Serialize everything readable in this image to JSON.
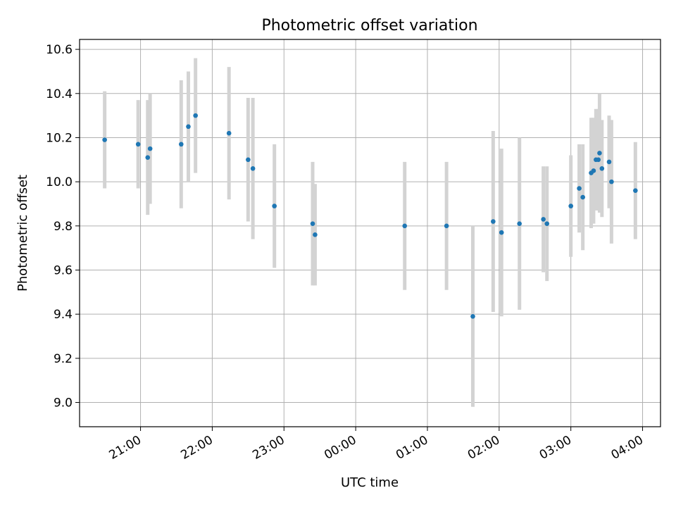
{
  "chart_data": {
    "type": "scatter",
    "title": "Photometric offset variation",
    "xlabel": "UTC time",
    "ylabel": "Photometric offset",
    "xlim": [
      "20:09",
      "04:15"
    ],
    "ylim": [
      8.89,
      10.645
    ],
    "grid": true,
    "x_ticks": [
      "21:00",
      "22:00",
      "23:00",
      "00:00",
      "01:00",
      "02:00",
      "03:00",
      "04:00"
    ],
    "y_ticks": [
      "9.0",
      "9.2",
      "9.4",
      "9.6",
      "9.8",
      "10.0",
      "10.2",
      "10.4",
      "10.6"
    ],
    "point_color": "#1f77b4",
    "errorbar_color": "#d3d3d3",
    "points": [
      {
        "time": "20:30",
        "y": 10.19,
        "err": 0.22
      },
      {
        "time": "20:58",
        "y": 10.17,
        "err": 0.2
      },
      {
        "time": "21:06",
        "y": 10.11,
        "err": 0.26
      },
      {
        "time": "21:08",
        "y": 10.15,
        "err": 0.25
      },
      {
        "time": "21:34",
        "y": 10.17,
        "err": 0.29
      },
      {
        "time": "21:40",
        "y": 10.25,
        "err": 0.25
      },
      {
        "time": "21:46",
        "y": 10.3,
        "err": 0.26
      },
      {
        "time": "22:14",
        "y": 10.22,
        "err": 0.3
      },
      {
        "time": "22:30",
        "y": 10.1,
        "err": 0.28
      },
      {
        "time": "22:34",
        "y": 10.06,
        "err": 0.32
      },
      {
        "time": "22:52",
        "y": 9.89,
        "err": 0.28
      },
      {
        "time": "23:24",
        "y": 9.81,
        "err": 0.28
      },
      {
        "time": "23:26",
        "y": 9.76,
        "err": 0.23
      },
      {
        "time": "00:41",
        "y": 9.8,
        "err": 0.29
      },
      {
        "time": "01:16",
        "y": 9.8,
        "err": 0.29
      },
      {
        "time": "01:38",
        "y": 9.39,
        "err": 0.41
      },
      {
        "time": "01:55",
        "y": 9.82,
        "err": 0.41
      },
      {
        "time": "02:02",
        "y": 9.77,
        "err": 0.38
      },
      {
        "time": "02:17",
        "y": 9.81,
        "err": 0.39
      },
      {
        "time": "02:37",
        "y": 9.83,
        "err": 0.24
      },
      {
        "time": "02:40",
        "y": 9.81,
        "err": 0.26
      },
      {
        "time": "03:00",
        "y": 9.89,
        "err": 0.23
      },
      {
        "time": "03:07",
        "y": 9.97,
        "err": 0.2
      },
      {
        "time": "03:10",
        "y": 9.93,
        "err": 0.24
      },
      {
        "time": "03:17",
        "y": 10.04,
        "err": 0.25
      },
      {
        "time": "03:19",
        "y": 10.05,
        "err": 0.24
      },
      {
        "time": "03:21",
        "y": 10.1,
        "err": 0.23
      },
      {
        "time": "03:23",
        "y": 10.1,
        "err": 0.23
      },
      {
        "time": "03:24",
        "y": 10.13,
        "err": 0.27
      },
      {
        "time": "03:26",
        "y": 10.06,
        "err": 0.22
      },
      {
        "time": "03:32",
        "y": 10.09,
        "err": 0.21
      },
      {
        "time": "03:34",
        "y": 10.0,
        "err": 0.28
      },
      {
        "time": "03:54",
        "y": 9.96,
        "err": 0.22
      }
    ]
  }
}
